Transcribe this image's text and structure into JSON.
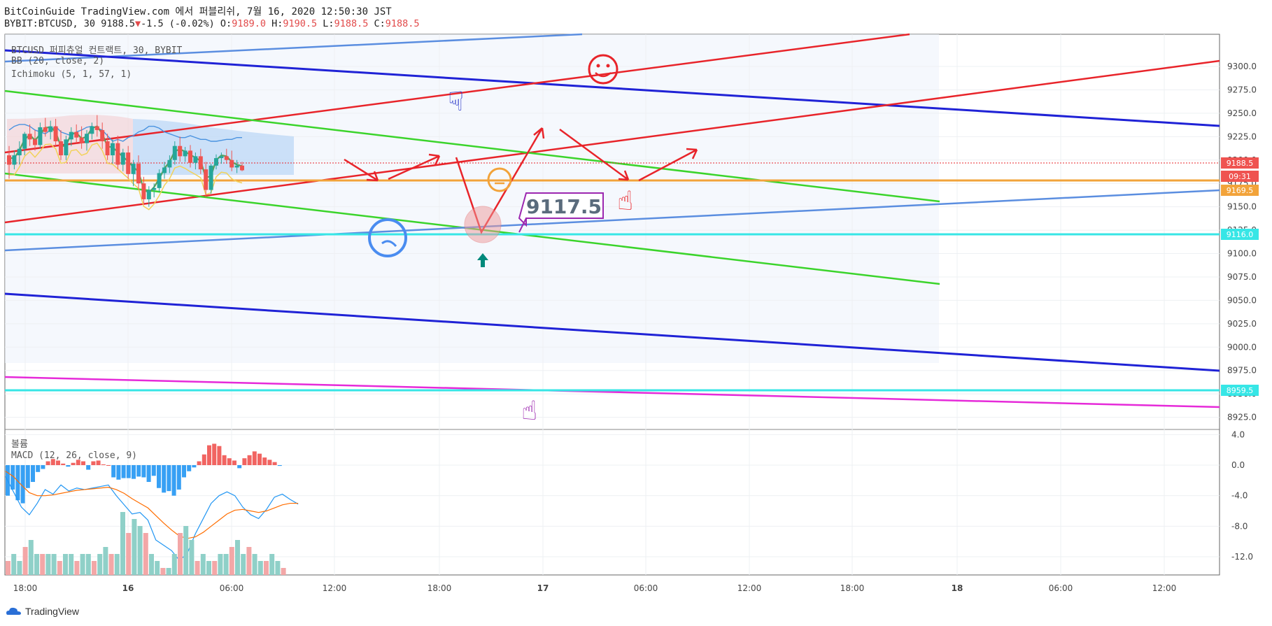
{
  "header": {
    "line1": "BitCoinGuide TradingView.com 에서 퍼블리쉬, 7월 16, 2020 12:50:30 JST",
    "symbol": "BYBIT:BTCUSD, 30",
    "last": "9188.5",
    "change": "-1.5 (-0.02%)",
    "o_label": "O:",
    "o": "9189.0",
    "h_label": "H:",
    "h": "9190.5",
    "l_label": "L:",
    "l": "9188.5",
    "c_label": "C:",
    "c": "9188.5"
  },
  "legend": {
    "main": "BTCUSD 퍼피츄얼 컨트랙트, 30, BYBIT",
    "bb": "BB (20, close, 2)",
    "ichimoku": "Ichimoku (5, 1, 57, 1)",
    "volume": "볼륨",
    "macd": "MACD (12, 26, close, 9)"
  },
  "annotation_label": "9117.5",
  "branding": "TradingView",
  "colors": {
    "red": "#e8242a",
    "green": "#3bd42b",
    "blue": "#1f22d6",
    "lightblue": "#5b8ee0",
    "orange": "#f2a33a",
    "cyan": "#37e6e6",
    "magenta": "#e62ad9",
    "purple": "#9c27b0",
    "up": "#26a69a",
    "down": "#ef5350"
  },
  "chart_data": [
    {
      "type": "candlestick",
      "title": "BTCUSD 퍼피츄얼 컨트랙트, 30, BYBIT",
      "ylim": [
        8920,
        9310
      ],
      "y_ticks": [
        "9300.0",
        "9275.0",
        "9250.0",
        "9225.0",
        "9200.0",
        "9175.0",
        "9150.0",
        "9125.0",
        "9100.0",
        "9075.0",
        "9050.0",
        "9025.0",
        "9000.0",
        "8975.0",
        "8950.0",
        "8925.0"
      ],
      "x_ticks": [
        "18:00",
        "16",
        "06:00",
        "12:00",
        "18:00",
        "17",
        "06:00",
        "12:00",
        "18:00",
        "18",
        "06:00",
        "12:00"
      ],
      "price_labels": [
        {
          "value": "9188.5",
          "color": "#ef5350"
        },
        {
          "value": "09:31",
          "color": "#ef5350"
        },
        {
          "value": "9169.5",
          "color": "#f2a33a"
        },
        {
          "value": "9116.0",
          "color": "#37e6e6"
        },
        {
          "value": "8959.5",
          "color": "#37e6e6"
        }
      ],
      "candles": [
        [
          9205,
          9215,
          9180,
          9195
        ],
        [
          9195,
          9210,
          9190,
          9205
        ],
        [
          9205,
          9220,
          9195,
          9212
        ],
        [
          9212,
          9230,
          9205,
          9228
        ],
        [
          9228,
          9238,
          9215,
          9222
        ],
        [
          9222,
          9232,
          9210,
          9216
        ],
        [
          9216,
          9240,
          9212,
          9235
        ],
        [
          9235,
          9245,
          9225,
          9230
        ],
        [
          9230,
          9242,
          9222,
          9236
        ],
        [
          9236,
          9244,
          9215,
          9220
        ],
        [
          9220,
          9232,
          9200,
          9205
        ],
        [
          9205,
          9226,
          9200,
          9222
        ],
        [
          9222,
          9235,
          9215,
          9230
        ],
        [
          9230,
          9238,
          9218,
          9224
        ],
        [
          9224,
          9236,
          9212,
          9218
        ],
        [
          9218,
          9232,
          9210,
          9228
        ],
        [
          9228,
          9240,
          9222,
          9236
        ],
        [
          9236,
          9248,
          9225,
          9232
        ],
        [
          9232,
          9240,
          9212,
          9220
        ],
        [
          9220,
          9228,
          9200,
          9205
        ],
        [
          9205,
          9222,
          9196,
          9218
        ],
        [
          9218,
          9226,
          9190,
          9195
        ],
        [
          9195,
          9212,
          9188,
          9208
        ],
        [
          9208,
          9215,
          9180,
          9185
        ],
        [
          9185,
          9200,
          9172,
          9196
        ],
        [
          9196,
          9205,
          9168,
          9175
        ],
        [
          9175,
          9182,
          9152,
          9158
        ],
        [
          9158,
          9172,
          9150,
          9168
        ],
        [
          9168,
          9175,
          9160,
          9170
        ],
        [
          9170,
          9190,
          9166,
          9186
        ],
        [
          9186,
          9198,
          9180,
          9192
        ],
        [
          9192,
          9205,
          9186,
          9200
        ],
        [
          9200,
          9220,
          9195,
          9215
        ],
        [
          9215,
          9225,
          9198,
          9204
        ],
        [
          9204,
          9214,
          9198,
          9210
        ],
        [
          9210,
          9216,
          9192,
          9197
        ],
        [
          9197,
          9208,
          9190,
          9204
        ],
        [
          9204,
          9212,
          9185,
          9190
        ],
        [
          9190,
          9198,
          9160,
          9168
        ],
        [
          9168,
          9196,
          9164,
          9194
        ],
        [
          9194,
          9206,
          9190,
          9202
        ],
        [
          9202,
          9208,
          9196,
          9204
        ],
        [
          9204,
          9212,
          9196,
          9200
        ],
        [
          9200,
          9210,
          9188,
          9192
        ],
        [
          9192,
          9200,
          9186,
          9194
        ],
        [
          9194,
          9198,
          9188,
          9189
        ]
      ],
      "series": [
        {
          "name": "BB (20, close, 2)",
          "values": [
            9232,
            9236,
            9238,
            9238,
            9236,
            9232,
            9230,
            9228,
            9232,
            9236,
            9230,
            9228,
            9226,
            9230,
            9232,
            9235,
            9236,
            9234,
            9232,
            9226,
            9220,
            9222,
            9220,
            9224,
            9226,
            9230,
            9232,
            9236,
            9236,
            9234,
            9230,
            9228,
            9226,
            9224,
            9224,
            9226,
            9224,
            9222,
            9222,
            9220,
            9220,
            9221,
            9222,
            9222,
            9224,
            9224
          ]
        }
      ]
    },
    {
      "type": "bar",
      "title": "MACD (12, 26, close, 9)",
      "ylim": [
        -14,
        4.2
      ],
      "y_ticks": [
        "4.0",
        "0.0",
        "-4.0",
        "-8.0",
        "-12.0"
      ],
      "histogram": [
        -4,
        -3.2,
        -4.6,
        -5.0,
        -3.0,
        -2.2,
        -0.9,
        -0.5,
        0.5,
        0.8,
        0.6,
        0.2,
        -0.2,
        0.3,
        0.7,
        0.5,
        -0.6,
        0.5,
        0.6,
        0.1,
        0,
        -1.6,
        -1.9,
        -1.7,
        -1.7,
        -1.8,
        -1.5,
        -1.6,
        -2.2,
        -1.4,
        -3.0,
        -3.6,
        -3.4,
        -4.0,
        -3.2,
        -1.6,
        -0.8,
        -0.3,
        0.5,
        1.4,
        2.6,
        2.8,
        2.5,
        1.3,
        0.9,
        0.6,
        -0.4,
        0.9,
        1.3,
        1.8,
        1.5,
        1.0,
        0.7,
        0.4,
        -0.1
      ],
      "series": [
        {
          "name": "MACD",
          "values": [
            -1.5,
            -3.5,
            -5.5,
            -6.5,
            -5.0,
            -3.2,
            -3.8,
            -2.6,
            -3.4,
            -3.0,
            -3.2,
            -3.0,
            -2.8,
            -2.6,
            -4.0,
            -5.2,
            -6.4,
            -6.2,
            -7.2,
            -9.8,
            -10.5,
            -11.2,
            -12.5,
            -11.5,
            -9.0,
            -7.0,
            -5.0,
            -4.0,
            -3.5,
            -4.0,
            -5.5,
            -6.5,
            -7.0,
            -5.8,
            -4.2,
            -3.8,
            -4.5,
            -5.1
          ]
        },
        {
          "name": "Signal",
          "values": [
            -0.8,
            -1.5,
            -2.6,
            -3.6,
            -4.0,
            -4.0,
            -3.9,
            -3.7,
            -3.5,
            -3.3,
            -3.2,
            -3.1,
            -3.0,
            -2.9,
            -3.2,
            -3.7,
            -4.4,
            -5.0,
            -5.6,
            -6.6,
            -7.6,
            -8.5,
            -9.3,
            -9.6,
            -9.4,
            -8.8,
            -8.0,
            -7.2,
            -6.4,
            -5.9,
            -5.8,
            -6.0,
            -6.2,
            -6.0,
            -5.6,
            -5.2,
            -5.0,
            -5.0
          ]
        }
      ]
    },
    {
      "type": "bar",
      "title": "볼륨",
      "values": [
        2,
        3,
        2,
        4,
        5,
        3,
        3,
        3,
        3,
        2,
        3,
        3,
        2,
        3,
        3,
        2,
        3,
        4,
        3,
        3,
        9,
        6,
        8,
        7,
        6,
        3,
        2,
        1,
        1,
        3,
        6,
        7,
        5,
        2,
        3,
        2,
        2,
        3,
        3,
        4,
        5,
        3,
        4,
        3,
        2,
        2,
        3,
        2,
        1
      ]
    }
  ]
}
